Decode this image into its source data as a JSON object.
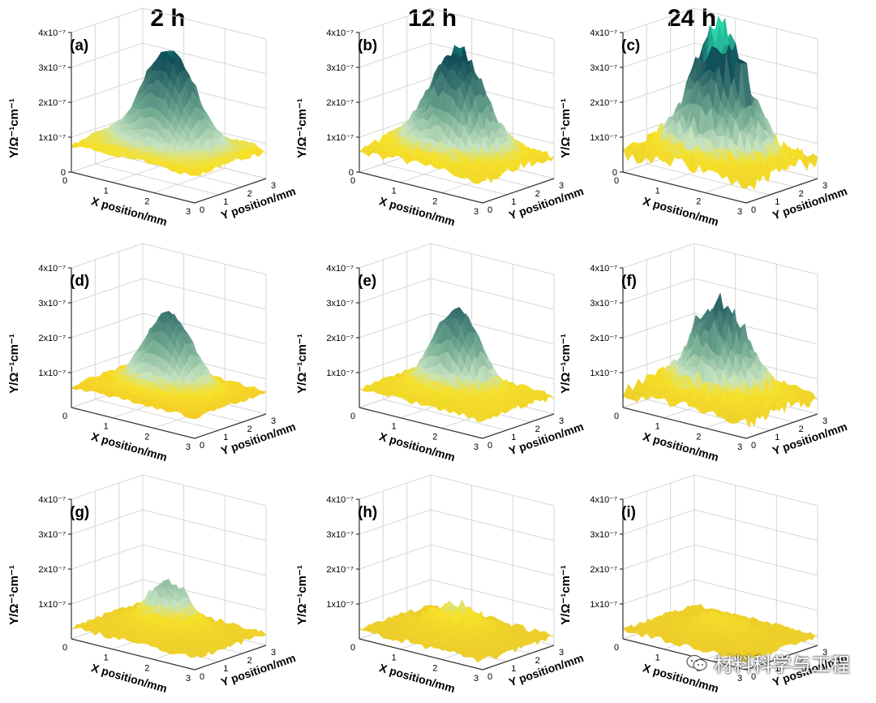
{
  "column_headers": [
    "2 h",
    "12 h",
    "24 h"
  ],
  "watermark": {
    "text": "材料科学与工程",
    "icon": "wechat-icon"
  },
  "colors": {
    "yellow": "#f6e12a",
    "orange": "#f3a01f",
    "pale_green": "#c5e3c1",
    "mid_green": "#6fa890",
    "dark_teal": "#0f4a57",
    "cyan_peak": "#2ad4a8",
    "grid": "#d6d6d6",
    "axis": "#333333"
  },
  "chart_data": [
    {
      "panel": "(a)",
      "type": "surface3d",
      "column": "2 h",
      "y_axis": {
        "label": "Y/Ω⁻¹cm⁻¹",
        "ticks": [
          "0",
          "1x10⁻⁷",
          "2x10⁻⁷",
          "3x10⁻⁷",
          "4x10⁻⁷"
        ],
        "range": [
          0,
          4e-07
        ]
      },
      "x_axis": {
        "label": "X position/mm",
        "ticks": [
          "0",
          "1",
          "2",
          "3"
        ],
        "range": [
          0,
          3
        ]
      },
      "y_pos_axis": {
        "label": "Y position/mm",
        "ticks": [
          "0",
          "1",
          "2",
          "3"
        ],
        "range": [
          0,
          3
        ]
      },
      "baseline": 9e-08,
      "peak_value": 3.6e-07,
      "peak_width": 0.55,
      "roughness": 0.25,
      "base_tone": "orange"
    },
    {
      "panel": "(b)",
      "type": "surface3d",
      "column": "12 h",
      "y_axis": {
        "label": "Y/Ω⁻¹cm⁻¹",
        "ticks": [
          "0",
          "1x10⁻⁷",
          "2x10⁻⁷",
          "3x10⁻⁷",
          "4x10⁻⁷"
        ],
        "range": [
          0,
          4e-07
        ]
      },
      "x_axis": {
        "label": "X position/mm",
        "ticks": [
          "0",
          "1",
          "2",
          "3"
        ],
        "range": [
          0,
          3
        ]
      },
      "y_pos_axis": {
        "label": "Y position/mm",
        "ticks": [
          "0",
          "1",
          "2",
          "3"
        ],
        "range": [
          0,
          3
        ]
      },
      "baseline": 7e-08,
      "peak_value": 3.5e-07,
      "peak_width": 0.6,
      "roughness": 0.45,
      "base_tone": "yellow"
    },
    {
      "panel": "(c)",
      "type": "surface3d",
      "column": "24 h",
      "y_axis": {
        "label": "Y/Ω⁻¹cm⁻¹",
        "ticks": [
          "0",
          "1x10⁻⁷",
          "2x10⁻⁷",
          "3x10⁻⁷",
          "4x10⁻⁷"
        ],
        "range": [
          0,
          4e-07
        ]
      },
      "x_axis": {
        "label": "X position/mm",
        "ticks": [
          "0",
          "1",
          "2",
          "3"
        ],
        "range": [
          0,
          3
        ]
      },
      "y_pos_axis": {
        "label": "Y position/mm",
        "ticks": [
          "0",
          "1",
          "2",
          "3"
        ],
        "range": [
          0,
          3
        ]
      },
      "baseline": 6e-08,
      "peak_value": 4.1e-07,
      "peak_width": 0.6,
      "roughness": 0.9,
      "base_tone": "yellow"
    },
    {
      "panel": "(d)",
      "type": "surface3d",
      "column": "2 h",
      "y_axis": {
        "label": "Y/Ω⁻¹cm⁻¹",
        "ticks": [
          "1x10⁻⁷",
          "2x10⁻⁷",
          "3x10⁻⁷",
          "4x10⁻⁷"
        ],
        "range": [
          0,
          4e-07
        ]
      },
      "x_axis": {
        "label": "X position/mm",
        "ticks": [
          "0",
          "1",
          "2",
          "3"
        ],
        "range": [
          0,
          3
        ]
      },
      "y_pos_axis": {
        "label": "Y position/mm",
        "ticks": [
          "0",
          "1",
          "2",
          "3"
        ],
        "range": [
          0,
          3
        ]
      },
      "baseline": 7e-08,
      "peak_value": 2.8e-07,
      "peak_width": 0.5,
      "roughness": 0.2,
      "base_tone": "orange"
    },
    {
      "panel": "(e)",
      "type": "surface3d",
      "column": "12 h",
      "y_axis": {
        "label": "Y/Ω⁻¹cm⁻¹",
        "ticks": [
          "1x10⁻⁷",
          "2x10⁻⁷",
          "3x10⁻⁷",
          "4x10⁻⁷"
        ],
        "range": [
          0,
          4e-07
        ]
      },
      "x_axis": {
        "label": "X position/mm",
        "ticks": [
          "0",
          "1",
          "2",
          "3"
        ],
        "range": [
          0,
          3
        ]
      },
      "y_pos_axis": {
        "label": "Y position/mm",
        "ticks": [
          "0",
          "1",
          "2",
          "3"
        ],
        "range": [
          0,
          3
        ]
      },
      "baseline": 6e-08,
      "peak_value": 2.9e-07,
      "peak_width": 0.5,
      "roughness": 0.35,
      "base_tone": "yellow"
    },
    {
      "panel": "(f)",
      "type": "surface3d",
      "column": "24 h",
      "y_axis": {
        "label": "Y/Ω⁻¹cm⁻¹",
        "ticks": [
          "1x10⁻⁷",
          "2x10⁻⁷",
          "3x10⁻⁷",
          "4x10⁻⁷"
        ],
        "range": [
          0,
          4e-07
        ]
      },
      "x_axis": {
        "label": "X position/mm",
        "ticks": [
          "0",
          "1",
          "2",
          "3"
        ],
        "range": [
          0,
          3
        ]
      },
      "y_pos_axis": {
        "label": "Y position/mm",
        "ticks": [
          "0",
          "1",
          "2",
          "3"
        ],
        "range": [
          0,
          3
        ]
      },
      "baseline": 5e-08,
      "peak_value": 2.9e-07,
      "peak_width": 0.6,
      "roughness": 0.7,
      "base_tone": "yellow"
    },
    {
      "panel": "(g)",
      "type": "surface3d",
      "column": "2 h",
      "y_axis": {
        "label": "Y/Ω⁻¹cm⁻¹",
        "ticks": [
          "1x10⁻⁷",
          "2x10⁻⁷",
          "3x10⁻⁷",
          "4x10⁻⁷"
        ],
        "range": [
          0,
          4e-07
        ]
      },
      "x_axis": {
        "label": "X position/mm",
        "ticks": [
          "0",
          "1",
          "2",
          "3"
        ],
        "range": [
          0,
          3
        ]
      },
      "y_pos_axis": {
        "label": "Y position/mm",
        "ticks": [
          "0",
          "1",
          "2",
          "3"
        ],
        "range": [
          0,
          3
        ]
      },
      "baseline": 4e-08,
      "peak_value": 1.7e-07,
      "peak_width": 0.45,
      "roughness": 0.3,
      "base_tone": "yellow"
    },
    {
      "panel": "(h)",
      "type": "surface3d",
      "column": "12 h",
      "y_axis": {
        "label": "Y/Ω⁻¹cm⁻¹",
        "ticks": [
          "1x10⁻⁷",
          "2x10⁻⁷",
          "3x10⁻⁷",
          "4x10⁻⁷"
        ],
        "range": [
          0,
          4e-07
        ]
      },
      "x_axis": {
        "label": "X position/mm",
        "ticks": [
          "0",
          "1",
          "2",
          "3"
        ],
        "range": [
          0,
          3
        ]
      },
      "y_pos_axis": {
        "label": "Y position/mm",
        "ticks": [
          "0",
          "1",
          "2",
          "3"
        ],
        "range": [
          0,
          3
        ]
      },
      "baseline": 3e-08,
      "peak_value": 1e-07,
      "peak_width": 0.55,
      "roughness": 0.35,
      "base_tone": "yellow"
    },
    {
      "panel": "(i)",
      "type": "surface3d",
      "column": "24 h",
      "y_axis": {
        "label": "Y/Ω⁻¹cm⁻¹",
        "ticks": [
          "1x10⁻⁷",
          "2x10⁻⁷",
          "3x10⁻⁷",
          "4x10⁻⁷"
        ],
        "range": [
          0,
          4e-07
        ]
      },
      "x_axis": {
        "label": "X position/mm",
        "ticks": [
          "0",
          "1",
          "2",
          "3"
        ],
        "range": [
          0,
          3
        ]
      },
      "y_pos_axis": {
        "label": "Y position/mm",
        "ticks": [
          "0",
          "1",
          "2",
          "3"
        ],
        "range": [
          0,
          3
        ]
      },
      "baseline": 3e-08,
      "peak_value": 7e-08,
      "peak_width": 0.5,
      "roughness": 0.3,
      "base_tone": "yellow"
    }
  ]
}
